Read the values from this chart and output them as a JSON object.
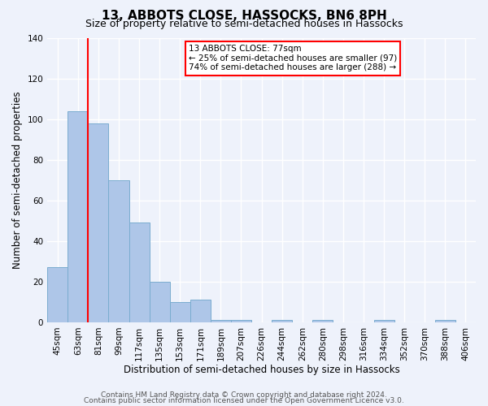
{
  "title": "13, ABBOTS CLOSE, HASSOCKS, BN6 8PH",
  "subtitle": "Size of property relative to semi-detached houses in Hassocks",
  "xlabel": "Distribution of semi-detached houses by size in Hassocks",
  "ylabel": "Number of semi-detached properties",
  "bin_labels": [
    "45sqm",
    "63sqm",
    "81sqm",
    "99sqm",
    "117sqm",
    "135sqm",
    "153sqm",
    "171sqm",
    "189sqm",
    "207sqm",
    "226sqm",
    "244sqm",
    "262sqm",
    "280sqm",
    "298sqm",
    "316sqm",
    "334sqm",
    "352sqm",
    "370sqm",
    "388sqm",
    "406sqm"
  ],
  "bar_values": [
    27,
    104,
    98,
    70,
    49,
    20,
    10,
    11,
    1,
    1,
    0,
    1,
    0,
    1,
    0,
    0,
    1,
    0,
    0,
    1,
    0
  ],
  "ylim": [
    0,
    140
  ],
  "yticks": [
    0,
    20,
    40,
    60,
    80,
    100,
    120,
    140
  ],
  "bar_color": "#aec6e8",
  "bar_edge_color": "#7aaccf",
  "vline_x_index": 1.5,
  "vline_color": "red",
  "annotation_title": "13 ABBOTS CLOSE: 77sqm",
  "annotation_line1": "← 25% of semi-detached houses are smaller (97)",
  "annotation_line2": "74% of semi-detached houses are larger (288) →",
  "annotation_box_color": "white",
  "annotation_box_edge": "red",
  "footer1": "Contains HM Land Registry data © Crown copyright and database right 2024.",
  "footer2": "Contains public sector information licensed under the Open Government Licence v3.0.",
  "background_color": "#eef2fb",
  "grid_color": "#ffffff",
  "title_fontsize": 11,
  "subtitle_fontsize": 9,
  "axis_label_fontsize": 8.5,
  "tick_fontsize": 7.5,
  "footer_fontsize": 6.5
}
